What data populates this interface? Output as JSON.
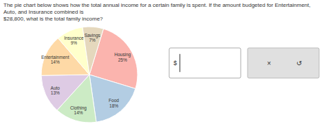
{
  "chart_data": {
    "type": "pie",
    "title": "The pie chart below shows how the total annual income for a certain family is spent. If the amount budgeted for Entertainment, Auto, and Insurance combined is",
    "subtitle": "$28,800, what is the total family income?",
    "categories": [
      "Housing",
      "Food",
      "Clothing",
      "Auto",
      "Entertainment",
      "Insurance",
      "Savings"
    ],
    "values": [
      25,
      18,
      14,
      13,
      14,
      9,
      7
    ],
    "value_labels": [
      "25%",
      "18%",
      "14%",
      "13%",
      "14%",
      "9%",
      "7%"
    ],
    "data_labels": true,
    "annotations": [
      "$",
      "×",
      "↺"
    ]
  }
}
